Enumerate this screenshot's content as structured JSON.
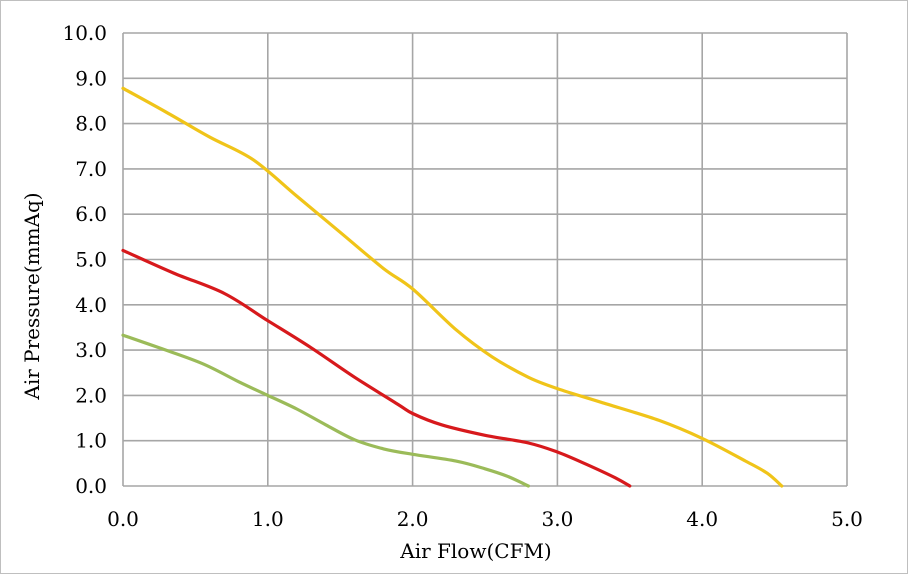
{
  "chart_data": {
    "type": "line",
    "title": "",
    "xlabel": "Air Flow(CFM)",
    "ylabel": "Air Pressure(mmAq)",
    "xlim": [
      0,
      5
    ],
    "ylim": [
      0,
      10
    ],
    "x_ticks": [
      "0.0",
      "1.0",
      "2.0",
      "3.0",
      "4.0",
      "5.0"
    ],
    "y_ticks": [
      "0.0",
      "1.0",
      "2.0",
      "3.0",
      "4.0",
      "5.0",
      "6.0",
      "7.0",
      "8.0",
      "9.0",
      "10.0"
    ],
    "grid": true,
    "legend": "none",
    "series": [
      {
        "color": "#f0c419",
        "x": [
          0,
          0.3,
          0.6,
          0.9,
          1.2,
          1.5,
          1.8,
          2.0,
          2.3,
          2.55,
          2.8,
          3.0,
          3.3,
          3.7,
          4.0,
          4.3,
          4.45,
          4.55
        ],
        "y": [
          8.78,
          8.25,
          7.7,
          7.2,
          6.4,
          5.6,
          4.8,
          4.35,
          3.45,
          2.85,
          2.4,
          2.15,
          1.85,
          1.45,
          1.05,
          0.55,
          0.28,
          0.0
        ]
      },
      {
        "color": "#d7191c",
        "x": [
          0,
          0.35,
          0.7,
          1.0,
          1.3,
          1.6,
          1.9,
          2.0,
          2.2,
          2.5,
          2.8,
          3.0,
          3.2,
          3.4,
          3.5
        ],
        "y": [
          5.2,
          4.7,
          4.25,
          3.65,
          3.05,
          2.4,
          1.8,
          1.6,
          1.35,
          1.12,
          0.95,
          0.75,
          0.48,
          0.18,
          0.0
        ]
      },
      {
        "color": "#9bbb59",
        "x": [
          0,
          0.25,
          0.55,
          0.8,
          1.0,
          1.2,
          1.4,
          1.6,
          1.8,
          2.0,
          2.3,
          2.5,
          2.65,
          2.8
        ],
        "y": [
          3.33,
          3.05,
          2.7,
          2.3,
          2.0,
          1.7,
          1.35,
          1.02,
          0.82,
          0.7,
          0.55,
          0.38,
          0.22,
          0.0
        ]
      }
    ]
  }
}
